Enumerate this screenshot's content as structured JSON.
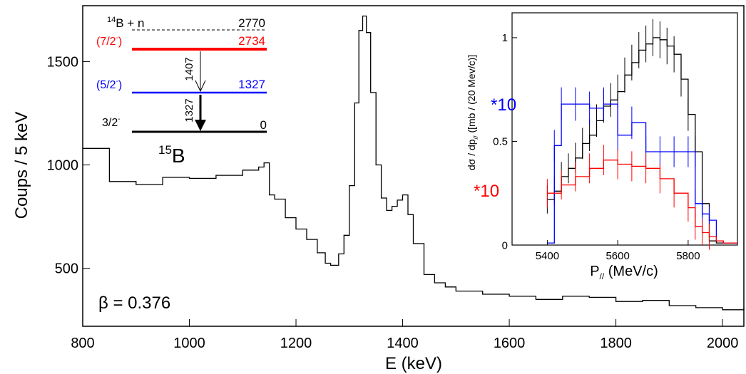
{
  "chart_data": [
    {
      "id": "main",
      "type": "line",
      "xlabel": "E (keV)",
      "ylabel": "Coups / 5 keV",
      "xlim": [
        800,
        2040
      ],
      "ylim": [
        220,
        1770
      ],
      "x_ticks": [
        800,
        1000,
        1200,
        1400,
        1600,
        1800,
        2000
      ],
      "y_ticks": [
        500,
        1000,
        1500
      ],
      "annotation": "β = 0.376",
      "series": [
        {
          "color": "#000000",
          "x": [
            800,
            850,
            900,
            950,
            1000,
            1050,
            1100,
            1130,
            1140,
            1150,
            1160,
            1180,
            1200,
            1220,
            1240,
            1255,
            1265,
            1280,
            1290,
            1300,
            1310,
            1318,
            1325,
            1332,
            1340,
            1350,
            1360,
            1370,
            1380,
            1390,
            1400,
            1410,
            1420,
            1440,
            1460,
            1480,
            1500,
            1550,
            1600,
            1650,
            1700,
            1750,
            1800,
            1850,
            1900,
            1950,
            2000,
            2040
          ],
          "y": [
            1080,
            920,
            905,
            940,
            935,
            950,
            975,
            990,
            1010,
            855,
            835,
            745,
            690,
            640,
            575,
            525,
            515,
            570,
            660,
            900,
            1300,
            1650,
            1720,
            1640,
            1350,
            1000,
            840,
            780,
            800,
            830,
            855,
            760,
            620,
            470,
            430,
            410,
            390,
            375,
            365,
            350,
            365,
            360,
            340,
            345,
            320,
            310,
            300,
            310
          ]
        }
      ],
      "level_scheme": {
        "levels": [
          {
            "energy": "2770",
            "label": "14B + n",
            "color": "#000000",
            "style": "dashed"
          },
          {
            "energy": "2734",
            "label": "(7/2-)",
            "color": "#ff0000",
            "style": "solid"
          },
          {
            "energy": "1327",
            "label": "(5/2-)",
            "color": "#0000ff",
            "style": "solid"
          },
          {
            "energy": "0",
            "label": "3/2-",
            "color": "#000000",
            "style": "solid"
          }
        ],
        "transitions": [
          {
            "label": "1407",
            "from": "2734",
            "to": "1327"
          },
          {
            "label": "1327",
            "from": "1327",
            "to": "0"
          }
        ],
        "nucleus": "15B"
      }
    },
    {
      "id": "inset",
      "type": "line",
      "xlabel": "P// (MeV/c)",
      "ylabel": "dσ / dp// ([mb / (20 Mev/c)]",
      "xlim": [
        5300,
        5940
      ],
      "ylim": [
        0,
        1.12
      ],
      "x_ticks": [
        5400,
        5600,
        5800
      ],
      "y_ticks": [
        0,
        0.5,
        1
      ],
      "series": [
        {
          "color": "#000000",
          "x": [
            5400,
            5420,
            5440,
            5460,
            5480,
            5500,
            5520,
            5540,
            5560,
            5580,
            5600,
            5620,
            5640,
            5660,
            5680,
            5700,
            5720,
            5740,
            5760,
            5780,
            5800,
            5820,
            5840,
            5860,
            5880,
            5900,
            5920,
            5940
          ],
          "y": [
            0.22,
            0.26,
            0.33,
            0.37,
            0.42,
            0.49,
            0.53,
            0.6,
            0.67,
            0.7,
            0.74,
            0.82,
            0.88,
            0.94,
            0.97,
            1.0,
            0.99,
            0.96,
            0.92,
            0.8,
            0.63,
            0.45,
            0.2,
            0.02,
            0.01,
            0.01,
            0.01,
            0.01
          ]
        },
        {
          "color": "#0000ff",
          "x": [
            5400,
            5420,
            5440,
            5480,
            5520,
            5560,
            5600,
            5640,
            5680,
            5720,
            5760,
            5800,
            5820,
            5840,
            5860,
            5880,
            5900,
            5920,
            5940
          ],
          "y": [
            0.01,
            0.48,
            0.68,
            0.68,
            0.66,
            0.68,
            0.53,
            0.59,
            0.45,
            0.45,
            0.45,
            0.45,
            0.2,
            0.15,
            0.12,
            0.02,
            0.01,
            0.01,
            0.01
          ],
          "label": "*10"
        },
        {
          "color": "#ff0000",
          "x": [
            5400,
            5440,
            5480,
            5520,
            5560,
            5600,
            5640,
            5680,
            5720,
            5760,
            5800,
            5820,
            5840,
            5860,
            5880,
            5900,
            5940
          ],
          "y": [
            0.25,
            0.29,
            0.33,
            0.37,
            0.41,
            0.39,
            0.38,
            0.37,
            0.32,
            0.25,
            0.18,
            0.09,
            0.06,
            0.04,
            0.02,
            0.01,
            0.01
          ],
          "label": "*10"
        }
      ]
    }
  ]
}
